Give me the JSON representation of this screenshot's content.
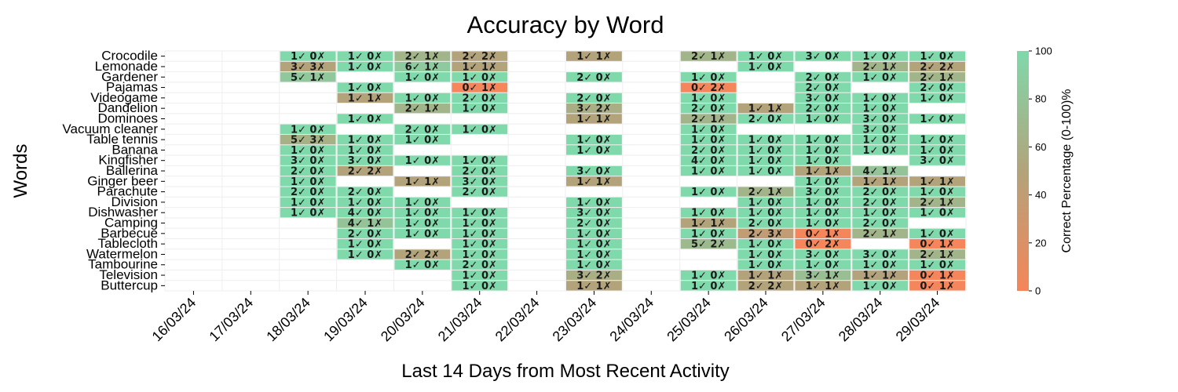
{
  "chart_data": {
    "type": "heatmap",
    "title": "Accuracy by Word",
    "xlabel": "Last 14 Days from Most Recent Activity",
    "ylabel": "Words",
    "colorbar_label": "Correct Percentage (0-100)%",
    "colorbar_range": [
      0,
      100
    ],
    "colorbar_ticks": [
      "0",
      "20",
      "40",
      "60",
      "80",
      "100"
    ],
    "colors": {
      "low": "#f5855a",
      "mid": "#b3a37a",
      "high": "#7fd9ab"
    },
    "x": [
      "16/03/24",
      "17/03/24",
      "18/03/24",
      "19/03/24",
      "20/03/24",
      "21/03/24",
      "22/03/24",
      "23/03/24",
      "24/03/24",
      "25/03/24",
      "26/03/24",
      "27/03/24",
      "28/03/24",
      "29/03/24"
    ],
    "words": [
      "Crocodile",
      "Lemonade",
      "Gardener",
      "Pajamas",
      "Videogame",
      "Dandelion",
      "Dominoes",
      "Vacuum cleaner",
      "Table tennis",
      "Banana",
      "Kingfisher",
      "Ballerina",
      "Ginger beer",
      "Parachute",
      "Division",
      "Dishwasher",
      "Camping",
      "Barbecue",
      "Tablecloth",
      "Watermelon",
      "Tambourine",
      "Television",
      "Buttercup"
    ],
    "annotations": [
      {
        "day": "18/03/24",
        "word": "Crocodile",
        "text": "1✓ 0✗"
      },
      {
        "day": "19/03/24",
        "word": "Crocodile",
        "text": "1✓ 0✗"
      },
      {
        "day": "20/03/24",
        "word": "Crocodile",
        "text": "2✓ 1✗"
      },
      {
        "day": "21/03/24",
        "word": "Crocodile",
        "text": "2✓ 2✗"
      },
      {
        "day": "23/03/24",
        "word": "Crocodile",
        "text": "1✓ 1✗"
      },
      {
        "day": "25/03/24",
        "word": "Crocodile",
        "text": "2✓ 1✗"
      },
      {
        "day": "26/03/24",
        "word": "Crocodile",
        "text": "1✓ 0✗"
      },
      {
        "day": "27/03/24",
        "word": "Crocodile",
        "text": "3✓ 0✗"
      },
      {
        "day": "28/03/24",
        "word": "Crocodile",
        "text": "1✓ 0✗"
      },
      {
        "day": "29/03/24",
        "word": "Crocodile",
        "text": "1✓ 0✗"
      },
      {
        "day": "18/03/24",
        "word": "Lemonade",
        "text": "3✓ 3✗"
      },
      {
        "day": "19/03/24",
        "word": "Lemonade",
        "text": "1✓ 0✗"
      },
      {
        "day": "20/03/24",
        "word": "Lemonade",
        "text": "6✓ 1✗"
      },
      {
        "day": "21/03/24",
        "word": "Lemonade",
        "text": "1✓ 1✗"
      },
      {
        "day": "26/03/24",
        "word": "Lemonade",
        "text": "1✓ 0✗"
      },
      {
        "day": "28/03/24",
        "word": "Lemonade",
        "text": "2✓ 1✗"
      },
      {
        "day": "29/03/24",
        "word": "Lemonade",
        "text": "2✓ 2✗"
      },
      {
        "day": "18/03/24",
        "word": "Gardener",
        "text": "5✓ 1✗"
      },
      {
        "day": "20/03/24",
        "word": "Gardener",
        "text": "1✓ 0✗"
      },
      {
        "day": "21/03/24",
        "word": "Gardener",
        "text": "1✓ 0✗"
      },
      {
        "day": "23/03/24",
        "word": "Gardener",
        "text": "2✓ 0✗"
      },
      {
        "day": "25/03/24",
        "word": "Gardener",
        "text": "1✓ 0✗"
      },
      {
        "day": "27/03/24",
        "word": "Gardener",
        "text": "2✓ 0✗"
      },
      {
        "day": "28/03/24",
        "word": "Gardener",
        "text": "1✓ 0✗"
      },
      {
        "day": "29/03/24",
        "word": "Gardener",
        "text": "2✓ 1✗"
      },
      {
        "day": "19/03/24",
        "word": "Pajamas",
        "text": "1✓ 0✗"
      },
      {
        "day": "21/03/24",
        "word": "Pajamas",
        "text": "0✓ 1✗"
      },
      {
        "day": "25/03/24",
        "word": "Pajamas",
        "text": "0✓ 2✗"
      },
      {
        "day": "27/03/24",
        "word": "Pajamas",
        "text": "2✓ 0✗"
      },
      {
        "day": "29/03/24",
        "word": "Pajamas",
        "text": "2✓ 0✗"
      },
      {
        "day": "19/03/24",
        "word": "Videogame",
        "text": "1✓ 1✗"
      },
      {
        "day": "20/03/24",
        "word": "Videogame",
        "text": "1✓ 0✗"
      },
      {
        "day": "21/03/24",
        "word": "Videogame",
        "text": "2✓ 0✗"
      },
      {
        "day": "23/03/24",
        "word": "Videogame",
        "text": "2✓ 0✗"
      },
      {
        "day": "25/03/24",
        "word": "Videogame",
        "text": "1✓ 0✗"
      },
      {
        "day": "27/03/24",
        "word": "Videogame",
        "text": "3✓ 0✗"
      },
      {
        "day": "28/03/24",
        "word": "Videogame",
        "text": "1✓ 0✗"
      },
      {
        "day": "29/03/24",
        "word": "Videogame",
        "text": "1✓ 0✗"
      },
      {
        "day": "20/03/24",
        "word": "Dandelion",
        "text": "2✓ 1✗"
      },
      {
        "day": "21/03/24",
        "word": "Dandelion",
        "text": "1✓ 0✗"
      },
      {
        "day": "23/03/24",
        "word": "Dandelion",
        "text": "3✓ 2✗"
      },
      {
        "day": "25/03/24",
        "word": "Dandelion",
        "text": "2✓ 0✗"
      },
      {
        "day": "26/03/24",
        "word": "Dandelion",
        "text": "1✓ 1✗"
      },
      {
        "day": "27/03/24",
        "word": "Dandelion",
        "text": "2✓ 0✗"
      },
      {
        "day": "28/03/24",
        "word": "Dandelion",
        "text": "1✓ 0✗"
      },
      {
        "day": "19/03/24",
        "word": "Dominoes",
        "text": "1✓ 0✗"
      },
      {
        "day": "23/03/24",
        "word": "Dominoes",
        "text": "1✓ 1✗"
      },
      {
        "day": "25/03/24",
        "word": "Dominoes",
        "text": "2✓ 1✗"
      },
      {
        "day": "26/03/24",
        "word": "Dominoes",
        "text": "2✓ 0✗"
      },
      {
        "day": "27/03/24",
        "word": "Dominoes",
        "text": "1✓ 0✗"
      },
      {
        "day": "28/03/24",
        "word": "Dominoes",
        "text": "3✓ 0✗"
      },
      {
        "day": "29/03/24",
        "word": "Dominoes",
        "text": "1✓ 0✗"
      },
      {
        "day": "18/03/24",
        "word": "Vacuum cleaner",
        "text": "1✓ 0✗"
      },
      {
        "day": "20/03/24",
        "word": "Vacuum cleaner",
        "text": "2✓ 0✗"
      },
      {
        "day": "21/03/24",
        "word": "Vacuum cleaner",
        "text": "1✓ 0✗"
      },
      {
        "day": "25/03/24",
        "word": "Vacuum cleaner",
        "text": "1✓ 0✗"
      },
      {
        "day": "28/03/24",
        "word": "Vacuum cleaner",
        "text": "3✓ 0✗"
      },
      {
        "day": "18/03/24",
        "word": "Table tennis",
        "text": "5✓ 3✗"
      },
      {
        "day": "19/03/24",
        "word": "Table tennis",
        "text": "1✓ 0✗"
      },
      {
        "day": "20/03/24",
        "word": "Table tennis",
        "text": "1✓ 0✗"
      },
      {
        "day": "23/03/24",
        "word": "Table tennis",
        "text": "1✓ 0✗"
      },
      {
        "day": "25/03/24",
        "word": "Table tennis",
        "text": "1✓ 0✗"
      },
      {
        "day": "26/03/24",
        "word": "Table tennis",
        "text": "1✓ 0✗"
      },
      {
        "day": "27/03/24",
        "word": "Table tennis",
        "text": "1✓ 0✗"
      },
      {
        "day": "28/03/24",
        "word": "Table tennis",
        "text": "1✓ 0✗"
      },
      {
        "day": "29/03/24",
        "word": "Table tennis",
        "text": "1✓ 0✗"
      },
      {
        "day": "18/03/24",
        "word": "Banana",
        "text": "1✓ 0✗"
      },
      {
        "day": "19/03/24",
        "word": "Banana",
        "text": "1✓ 0✗"
      },
      {
        "day": "23/03/24",
        "word": "Banana",
        "text": "1✓ 0✗"
      },
      {
        "day": "25/03/24",
        "word": "Banana",
        "text": "2✓ 0✗"
      },
      {
        "day": "26/03/24",
        "word": "Banana",
        "text": "1✓ 0✗"
      },
      {
        "day": "27/03/24",
        "word": "Banana",
        "text": "1✓ 0✗"
      },
      {
        "day": "28/03/24",
        "word": "Banana",
        "text": "1✓ 0✗"
      },
      {
        "day": "29/03/24",
        "word": "Banana",
        "text": "1✓ 0✗"
      },
      {
        "day": "18/03/24",
        "word": "Kingfisher",
        "text": "3✓ 0✗"
      },
      {
        "day": "19/03/24",
        "word": "Kingfisher",
        "text": "3✓ 0✗"
      },
      {
        "day": "20/03/24",
        "word": "Kingfisher",
        "text": "1✓ 0✗"
      },
      {
        "day": "21/03/24",
        "word": "Kingfisher",
        "text": "1✓ 0✗"
      },
      {
        "day": "25/03/24",
        "word": "Kingfisher",
        "text": "4✓ 0✗"
      },
      {
        "day": "26/03/24",
        "word": "Kingfisher",
        "text": "1✓ 0✗"
      },
      {
        "day": "27/03/24",
        "word": "Kingfisher",
        "text": "1✓ 0✗"
      },
      {
        "day": "29/03/24",
        "word": "Kingfisher",
        "text": "3✓ 0✗"
      },
      {
        "day": "18/03/24",
        "word": "Ballerina",
        "text": "2✓ 0✗"
      },
      {
        "day": "19/03/24",
        "word": "Ballerina",
        "text": "2✓ 2✗"
      },
      {
        "day": "21/03/24",
        "word": "Ballerina",
        "text": "2✓ 0✗"
      },
      {
        "day": "23/03/24",
        "word": "Ballerina",
        "text": "3✓ 0✗"
      },
      {
        "day": "25/03/24",
        "word": "Ballerina",
        "text": "1✓ 0✗"
      },
      {
        "day": "26/03/24",
        "word": "Ballerina",
        "text": "1✓ 0✗"
      },
      {
        "day": "27/03/24",
        "word": "Ballerina",
        "text": "1✓ 1✗"
      },
      {
        "day": "28/03/24",
        "word": "Ballerina",
        "text": "4✓ 1✗"
      },
      {
        "day": "18/03/24",
        "word": "Ginger beer",
        "text": "1✓ 0✗"
      },
      {
        "day": "20/03/24",
        "word": "Ginger beer",
        "text": "1✓ 1✗"
      },
      {
        "day": "21/03/24",
        "word": "Ginger beer",
        "text": "3✓ 0✗"
      },
      {
        "day": "23/03/24",
        "word": "Ginger beer",
        "text": "1✓ 1✗"
      },
      {
        "day": "27/03/24",
        "word": "Ginger beer",
        "text": "1✓ 0✗"
      },
      {
        "day": "28/03/24",
        "word": "Ginger beer",
        "text": "1✓ 1✗"
      },
      {
        "day": "29/03/24",
        "word": "Ginger beer",
        "text": "1✓ 1✗"
      },
      {
        "day": "18/03/24",
        "word": "Parachute",
        "text": "2✓ 0✗"
      },
      {
        "day": "19/03/24",
        "word": "Parachute",
        "text": "2✓ 0✗"
      },
      {
        "day": "21/03/24",
        "word": "Parachute",
        "text": "2✓ 0✗"
      },
      {
        "day": "25/03/24",
        "word": "Parachute",
        "text": "1✓ 0✗"
      },
      {
        "day": "26/03/24",
        "word": "Parachute",
        "text": "2✓ 1✗"
      },
      {
        "day": "27/03/24",
        "word": "Parachute",
        "text": "3✓ 0✗"
      },
      {
        "day": "28/03/24",
        "word": "Parachute",
        "text": "2✓ 0✗"
      },
      {
        "day": "29/03/24",
        "word": "Parachute",
        "text": "1✓ 0✗"
      },
      {
        "day": "18/03/24",
        "word": "Division",
        "text": "1✓ 0✗"
      },
      {
        "day": "19/03/24",
        "word": "Division",
        "text": "1✓ 0✗"
      },
      {
        "day": "20/03/24",
        "word": "Division",
        "text": "1✓ 0✗"
      },
      {
        "day": "23/03/24",
        "word": "Division",
        "text": "1✓ 0✗"
      },
      {
        "day": "26/03/24",
        "word": "Division",
        "text": "1✓ 0✗"
      },
      {
        "day": "27/03/24",
        "word": "Division",
        "text": "1✓ 0✗"
      },
      {
        "day": "28/03/24",
        "word": "Division",
        "text": "2✓ 0✗"
      },
      {
        "day": "29/03/24",
        "word": "Division",
        "text": "2✓ 1✗"
      },
      {
        "day": "18/03/24",
        "word": "Dishwasher",
        "text": "1✓ 0✗"
      },
      {
        "day": "19/03/24",
        "word": "Dishwasher",
        "text": "4✓ 0✗"
      },
      {
        "day": "20/03/24",
        "word": "Dishwasher",
        "text": "1✓ 0✗"
      },
      {
        "day": "21/03/24",
        "word": "Dishwasher",
        "text": "1✓ 0✗"
      },
      {
        "day": "23/03/24",
        "word": "Dishwasher",
        "text": "3✓ 0✗"
      },
      {
        "day": "25/03/24",
        "word": "Dishwasher",
        "text": "1✓ 0✗"
      },
      {
        "day": "26/03/24",
        "word": "Dishwasher",
        "text": "1✓ 0✗"
      },
      {
        "day": "27/03/24",
        "word": "Dishwasher",
        "text": "1✓ 0✗"
      },
      {
        "day": "28/03/24",
        "word": "Dishwasher",
        "text": "1✓ 0✗"
      },
      {
        "day": "29/03/24",
        "word": "Dishwasher",
        "text": "1✓ 0✗"
      },
      {
        "day": "19/03/24",
        "word": "Camping",
        "text": "4✓ 1✗"
      },
      {
        "day": "20/03/24",
        "word": "Camping",
        "text": "1✓ 0✗"
      },
      {
        "day": "21/03/24",
        "word": "Camping",
        "text": "1✓ 0✗"
      },
      {
        "day": "23/03/24",
        "word": "Camping",
        "text": "2✓ 0✗"
      },
      {
        "day": "25/03/24",
        "word": "Camping",
        "text": "1✓ 1✗"
      },
      {
        "day": "26/03/24",
        "word": "Camping",
        "text": "2✓ 0✗"
      },
      {
        "day": "27/03/24",
        "word": "Camping",
        "text": "1✓ 0✗"
      },
      {
        "day": "28/03/24",
        "word": "Camping",
        "text": "2✓ 0✗"
      },
      {
        "day": "19/03/24",
        "word": "Barbecue",
        "text": "2✓ 0✗"
      },
      {
        "day": "20/03/24",
        "word": "Barbecue",
        "text": "1✓ 0✗"
      },
      {
        "day": "21/03/24",
        "word": "Barbecue",
        "text": "1✓ 0✗"
      },
      {
        "day": "23/03/24",
        "word": "Barbecue",
        "text": "1✓ 0✗"
      },
      {
        "day": "25/03/24",
        "word": "Barbecue",
        "text": "1✓ 0✗"
      },
      {
        "day": "26/03/24",
        "word": "Barbecue",
        "text": "2✓ 3✗"
      },
      {
        "day": "27/03/24",
        "word": "Barbecue",
        "text": "0✓ 1✗"
      },
      {
        "day": "28/03/24",
        "word": "Barbecue",
        "text": "2✓ 1✗"
      },
      {
        "day": "29/03/24",
        "word": "Barbecue",
        "text": "1✓ 0✗"
      },
      {
        "day": "19/03/24",
        "word": "Tablecloth",
        "text": "1✓ 0✗"
      },
      {
        "day": "21/03/24",
        "word": "Tablecloth",
        "text": "1✓ 0✗"
      },
      {
        "day": "23/03/24",
        "word": "Tablecloth",
        "text": "1✓ 0✗"
      },
      {
        "day": "25/03/24",
        "word": "Tablecloth",
        "text": "5✓ 2✗"
      },
      {
        "day": "26/03/24",
        "word": "Tablecloth",
        "text": "1✓ 0✗"
      },
      {
        "day": "27/03/24",
        "word": "Tablecloth",
        "text": "0✓ 2✗"
      },
      {
        "day": "29/03/24",
        "word": "Tablecloth",
        "text": "0✓ 1✗"
      },
      {
        "day": "19/03/24",
        "word": "Watermelon",
        "text": "1✓ 0✗"
      },
      {
        "day": "20/03/24",
        "word": "Watermelon",
        "text": "2✓ 2✗"
      },
      {
        "day": "21/03/24",
        "word": "Watermelon",
        "text": "1✓ 0✗"
      },
      {
        "day": "23/03/24",
        "word": "Watermelon",
        "text": "1✓ 0✗"
      },
      {
        "day": "26/03/24",
        "word": "Watermelon",
        "text": "1✓ 0✗"
      },
      {
        "day": "27/03/24",
        "word": "Watermelon",
        "text": "3✓ 0✗"
      },
      {
        "day": "28/03/24",
        "word": "Watermelon",
        "text": "3✓ 0✗"
      },
      {
        "day": "29/03/24",
        "word": "Watermelon",
        "text": "2✓ 1✗"
      },
      {
        "day": "20/03/24",
        "word": "Tambourine",
        "text": "1✓ 0✗"
      },
      {
        "day": "21/03/24",
        "word": "Tambourine",
        "text": "2✓ 0✗"
      },
      {
        "day": "23/03/24",
        "word": "Tambourine",
        "text": "1✓ 0✗"
      },
      {
        "day": "26/03/24",
        "word": "Tambourine",
        "text": "1✓ 0✗"
      },
      {
        "day": "27/03/24",
        "word": "Tambourine",
        "text": "1✓ 0✗"
      },
      {
        "day": "28/03/24",
        "word": "Tambourine",
        "text": "1✓ 0✗"
      },
      {
        "day": "29/03/24",
        "word": "Tambourine",
        "text": "1✓ 0✗"
      },
      {
        "day": "21/03/24",
        "word": "Television",
        "text": "1✓ 0✗"
      },
      {
        "day": "23/03/24",
        "word": "Television",
        "text": "3✓ 2✗"
      },
      {
        "day": "25/03/24",
        "word": "Television",
        "text": "1✓ 0✗"
      },
      {
        "day": "26/03/24",
        "word": "Television",
        "text": "1✓ 1✗"
      },
      {
        "day": "27/03/24",
        "word": "Television",
        "text": "3✓ 1✗"
      },
      {
        "day": "28/03/24",
        "word": "Television",
        "text": "1✓ 1✗"
      },
      {
        "day": "29/03/24",
        "word": "Television",
        "text": "0✓ 1✗"
      },
      {
        "day": "21/03/24",
        "word": "Buttercup",
        "text": "1✓ 0✗"
      },
      {
        "day": "23/03/24",
        "word": "Buttercup",
        "text": "1✓ 1✗"
      },
      {
        "day": "25/03/24",
        "word": "Buttercup",
        "text": "1✓ 0✗"
      },
      {
        "day": "26/03/24",
        "word": "Buttercup",
        "text": "2✓ 2✗"
      },
      {
        "day": "27/03/24",
        "word": "Buttercup",
        "text": "1✓ 1✗"
      },
      {
        "day": "28/03/24",
        "word": "Buttercup",
        "text": "1✓ 0✗"
      },
      {
        "day": "29/03/24",
        "word": "Buttercup",
        "text": "0✓ 1✗"
      }
    ]
  }
}
